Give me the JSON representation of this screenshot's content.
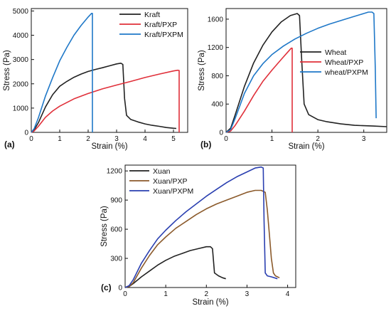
{
  "chart_data": [
    {
      "type": "line",
      "panel_label": "(a)",
      "xlabel": "Strain (%)",
      "ylabel": "Stress (Pa)",
      "xlim": [
        0,
        5.5
      ],
      "ylim": [
        0,
        5100
      ],
      "xticks": [
        0,
        1,
        2,
        3,
        4,
        5
      ],
      "yticks": [
        0,
        1000,
        2000,
        3000,
        4000,
        5000
      ],
      "legend_position": "top-right",
      "series": [
        {
          "name": "Kraft",
          "color": "#222222",
          "x": [
            0,
            0.1,
            0.25,
            0.5,
            0.75,
            1.0,
            1.25,
            1.5,
            1.75,
            2.0,
            2.25,
            2.5,
            2.75,
            3.0,
            3.15,
            3.22,
            3.28,
            3.35,
            3.5,
            3.75,
            4.0,
            4.25,
            4.5,
            4.75,
            5.0,
            5.1
          ],
          "y": [
            0,
            100,
            400,
            1050,
            1550,
            1900,
            2100,
            2270,
            2400,
            2510,
            2590,
            2660,
            2740,
            2820,
            2850,
            2800,
            1400,
            700,
            530,
            430,
            350,
            290,
            250,
            200,
            170,
            160
          ]
        },
        {
          "name": "Kraft/PXP",
          "color": "#e0303a",
          "x": [
            0,
            0.1,
            0.25,
            0.5,
            0.75,
            1.0,
            1.5,
            2.0,
            2.5,
            3.0,
            3.5,
            4.0,
            4.5,
            5.0,
            5.15,
            5.2,
            5.2
          ],
          "y": [
            0,
            60,
            250,
            620,
            880,
            1080,
            1380,
            1600,
            1790,
            1950,
            2100,
            2260,
            2400,
            2530,
            2560,
            2550,
            0
          ]
        },
        {
          "name": "Kraft/PXPM",
          "color": "#1f78c8",
          "x": [
            0,
            0.1,
            0.25,
            0.5,
            0.75,
            1.0,
            1.25,
            1.5,
            1.75,
            2.0,
            2.12,
            2.15,
            2.15
          ],
          "y": [
            0,
            150,
            600,
            1500,
            2250,
            2950,
            3500,
            4000,
            4400,
            4750,
            4900,
            4900,
            0
          ]
        }
      ]
    },
    {
      "type": "line",
      "panel_label": "(b)",
      "xlabel": "Strain (%)",
      "ylabel": "Stress (Pa)",
      "xlim": [
        0,
        3.5
      ],
      "ylim": [
        0,
        1750
      ],
      "xticks": [
        0,
        1,
        2,
        3
      ],
      "yticks": [
        0,
        400,
        800,
        1200,
        1600
      ],
      "legend_position": "center-right",
      "series": [
        {
          "name": "Wheat",
          "color": "#222222",
          "x": [
            0,
            0.1,
            0.2,
            0.4,
            0.6,
            0.8,
            1.0,
            1.2,
            1.4,
            1.55,
            1.6,
            1.65,
            1.7,
            1.8,
            2.0,
            2.2,
            2.5,
            2.8,
            3.2,
            3.5
          ],
          "y": [
            0,
            60,
            250,
            650,
            980,
            1230,
            1420,
            1560,
            1650,
            1680,
            1650,
            1000,
            400,
            250,
            180,
            150,
            120,
            100,
            90,
            80
          ]
        },
        {
          "name": "Wheat/PXP",
          "color": "#e0303a",
          "x": [
            0,
            0.1,
            0.2,
            0.4,
            0.6,
            0.8,
            1.0,
            1.2,
            1.35,
            1.42,
            1.44,
            1.44
          ],
          "y": [
            0,
            20,
            100,
            300,
            520,
            720,
            880,
            1030,
            1140,
            1190,
            1190,
            0
          ]
        },
        {
          "name": "wheat/PXPM",
          "color": "#1f78c8",
          "x": [
            0,
            0.1,
            0.2,
            0.4,
            0.6,
            0.8,
            1.0,
            1.25,
            1.5,
            1.75,
            2.0,
            2.25,
            2.5,
            2.75,
            3.0,
            3.1,
            3.18,
            3.22,
            3.25,
            3.27
          ],
          "y": [
            0,
            40,
            200,
            550,
            800,
            970,
            1100,
            1220,
            1320,
            1400,
            1470,
            1530,
            1580,
            1630,
            1680,
            1700,
            1700,
            1680,
            900,
            200
          ]
        }
      ]
    },
    {
      "type": "line",
      "panel_label": "(c)",
      "xlabel": "Strain (%)",
      "ylabel": "Stress (Pa)",
      "xlim": [
        0,
        4.2
      ],
      "ylim": [
        0,
        1260
      ],
      "xticks": [
        0,
        1,
        2,
        3,
        4
      ],
      "yticks": [
        0,
        300,
        600,
        900,
        1200
      ],
      "legend_position": "top-left",
      "series": [
        {
          "name": "Xuan",
          "color": "#222222",
          "x": [
            0,
            0.1,
            0.2,
            0.4,
            0.6,
            0.8,
            1.0,
            1.2,
            1.4,
            1.6,
            1.8,
            2.0,
            2.1,
            2.15,
            2.2,
            2.3,
            2.4,
            2.48
          ],
          "y": [
            0,
            10,
            40,
            110,
            170,
            230,
            280,
            320,
            350,
            380,
            400,
            420,
            420,
            400,
            150,
            120,
            100,
            90
          ]
        },
        {
          "name": "Xuan/PXP",
          "color": "#8b5a2b",
          "x": [
            0,
            0.1,
            0.2,
            0.4,
            0.6,
            0.8,
            1.0,
            1.25,
            1.5,
            1.75,
            2.0,
            2.25,
            2.5,
            2.75,
            3.0,
            3.2,
            3.35,
            3.45,
            3.5,
            3.55,
            3.6,
            3.65,
            3.7,
            3.8
          ],
          "y": [
            0,
            10,
            50,
            200,
            330,
            440,
            520,
            610,
            680,
            750,
            810,
            860,
            900,
            940,
            980,
            1000,
            1000,
            980,
            800,
            550,
            300,
            150,
            120,
            100
          ]
        },
        {
          "name": "Xuan/PXPM",
          "color": "#2a3fb0",
          "x": [
            0,
            0.1,
            0.2,
            0.4,
            0.6,
            0.8,
            1.0,
            1.25,
            1.5,
            1.75,
            2.0,
            2.25,
            2.5,
            2.75,
            3.0,
            3.2,
            3.35,
            3.4,
            3.42,
            3.45,
            3.5,
            3.6,
            3.75
          ],
          "y": [
            0,
            20,
            80,
            250,
            380,
            500,
            590,
            690,
            780,
            860,
            940,
            1010,
            1080,
            1140,
            1190,
            1230,
            1240,
            1230,
            700,
            150,
            120,
            110,
            90
          ]
        }
      ]
    }
  ]
}
